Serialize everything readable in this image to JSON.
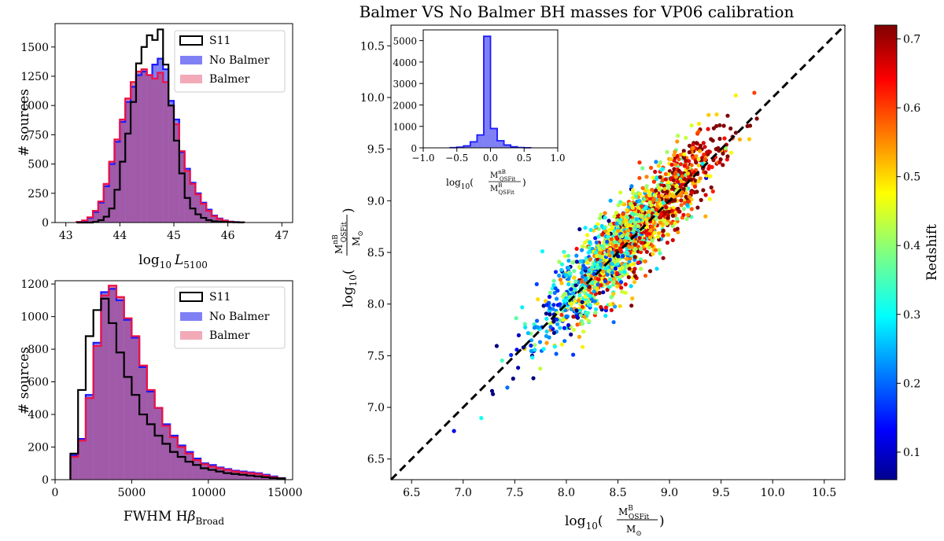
{
  "figure": {
    "colors": {
      "s11": "#000000",
      "no_balmer": "#8080f5",
      "no_balmer_edge": "#1a1aff",
      "balmer_edge": "#ee1144",
      "overlap": "#a05aa8",
      "balmer_legend": "#f2aab8",
      "dashed": "#000000"
    }
  },
  "chart_data": [
    {
      "id": "lum_hist",
      "type": "bar",
      "xlabel_prefix": "log",
      "xlabel_sub": "10",
      "xlabel_var": "L",
      "xlabel_var_sub": "5100",
      "ylabel": "# sources",
      "xlim": [
        42.8,
        47.2
      ],
      "ylim": [
        0,
        1700
      ],
      "xticks": [
        43,
        44,
        45,
        46,
        47
      ],
      "yticks": [
        0,
        250,
        500,
        750,
        1000,
        1250,
        1500
      ],
      "bin_edges": [
        43.2,
        43.3,
        43.4,
        43.5,
        43.6,
        43.7,
        43.8,
        43.9,
        44.0,
        44.1,
        44.2,
        44.3,
        44.4,
        44.5,
        44.6,
        44.7,
        44.8,
        44.9,
        45.0,
        45.1,
        45.2,
        45.3,
        45.4,
        45.5,
        45.6,
        45.7,
        45.8,
        45.9,
        46.0,
        46.1,
        46.2,
        46.3
      ],
      "legend": [
        "S11",
        "No Balmer",
        "Balmer"
      ],
      "series": [
        {
          "name": "S11",
          "values": [
            0,
            0,
            0,
            5,
            20,
            50,
            120,
            280,
            520,
            760,
            1030,
            1360,
            1500,
            1600,
            1560,
            1650,
            1350,
            1000,
            700,
            420,
            210,
            120,
            70,
            40,
            20,
            10,
            8,
            5,
            3,
            2,
            1
          ]
        },
        {
          "name": "No Balmer",
          "values": [
            5,
            15,
            40,
            90,
            170,
            310,
            500,
            690,
            860,
            1030,
            1160,
            1260,
            1290,
            1260,
            1350,
            1400,
            1310,
            1040,
            880,
            600,
            460,
            340,
            250,
            170,
            110,
            60,
            35,
            18,
            8,
            4,
            2
          ]
        },
        {
          "name": "Balmer",
          "values": [
            5,
            18,
            45,
            100,
            180,
            330,
            520,
            710,
            880,
            1060,
            1200,
            1290,
            1310,
            1260,
            1230,
            1280,
            1200,
            1000,
            840,
            610,
            440,
            330,
            240,
            160,
            100,
            55,
            30,
            15,
            7,
            3,
            1
          ]
        }
      ]
    },
    {
      "id": "fwhm_hist",
      "type": "bar",
      "xlabel_prefix": "FWHM H",
      "xlabel_greek": "β",
      "xlabel_sub": "Broad",
      "ylabel": "# sources",
      "xlim": [
        0,
        15500
      ],
      "ylim": [
        0,
        1220
      ],
      "xticks": [
        0,
        5000,
        10000,
        15000
      ],
      "yticks": [
        0,
        200,
        400,
        600,
        800,
        1000,
        1200
      ],
      "bin_edges": [
        1000,
        1500,
        2000,
        2500,
        3000,
        3500,
        4000,
        4500,
        5000,
        5500,
        6000,
        6500,
        7000,
        7500,
        8000,
        8500,
        9000,
        9500,
        10000,
        10500,
        11000,
        11500,
        12000,
        12500,
        13000,
        13500,
        14000,
        14500,
        15000
      ],
      "legend": [
        "S11",
        "No Balmer",
        "Balmer"
      ],
      "series": [
        {
          "name": "S11",
          "values": [
            160,
            550,
            880,
            1040,
            1110,
            960,
            780,
            630,
            520,
            400,
            340,
            270,
            220,
            170,
            140,
            110,
            90,
            70,
            60,
            50,
            40,
            35,
            30,
            25,
            20,
            15,
            10,
            8
          ]
        },
        {
          "name": "No Balmer",
          "values": [
            150,
            250,
            520,
            840,
            1150,
            1170,
            1100,
            980,
            870,
            690,
            540,
            440,
            340,
            270,
            210,
            170,
            130,
            100,
            90,
            75,
            65,
            55,
            50,
            45,
            40,
            30,
            20,
            10
          ]
        },
        {
          "name": "Balmer",
          "values": [
            140,
            240,
            500,
            820,
            1130,
            1190,
            1120,
            990,
            880,
            700,
            550,
            440,
            330,
            260,
            200,
            160,
            120,
            95,
            80,
            70,
            60,
            50,
            45,
            40,
            35,
            25,
            15,
            8
          ]
        }
      ]
    },
    {
      "id": "mass_scatter",
      "type": "scatter",
      "title": "Balmer VS No Balmer BH masses for VP06 calibration",
      "xlabel_main": "M",
      "xlabel_sup": "B",
      "xlabel_sub": "QSFit",
      "xlabel_den": "M",
      "xlabel_den_sub": "⊙",
      "ylabel_main": "M",
      "ylabel_sup": "nB",
      "ylabel_sub": "QSFit",
      "ylabel_den": "M",
      "ylabel_den_sub": "⊙",
      "log_prefix": "log",
      "log_sub": "10",
      "xlim": [
        6.3,
        10.7
      ],
      "ylim": [
        6.3,
        10.7
      ],
      "xticks": [
        6.5,
        7.0,
        7.5,
        8.0,
        8.5,
        9.0,
        9.5,
        10.0,
        10.5
      ],
      "yticks": [
        6.5,
        7.0,
        7.5,
        8.0,
        8.5,
        9.0,
        9.5,
        10.0,
        10.5
      ],
      "one_to_one_line": [
        [
          6.3,
          6.3
        ],
        [
          10.7,
          10.7
        ]
      ],
      "n_points_drawn": 1800,
      "x_center": 8.6,
      "x_spread": 0.42,
      "y_scatter": 0.2,
      "redshift_range": [
        0.06,
        0.72
      ]
    },
    {
      "id": "ratio_inset",
      "type": "bar",
      "xlabel_prefix": "log",
      "xlabel_sub": "10",
      "xlabel_num": "M",
      "xlabel_num_sup": "nB",
      "xlabel_num_sub": "QSFit",
      "xlabel_den": "M",
      "xlabel_den_sup": "B",
      "xlabel_den_sub": "QSFit",
      "xlim": [
        -1.0,
        1.0
      ],
      "ylim": [
        0,
        5500
      ],
      "xticks": [
        -1.0,
        -0.5,
        0.0,
        0.5,
        1.0
      ],
      "yticks": [
        0,
        1000,
        2000,
        3000,
        4000,
        5000
      ],
      "bin_edges": [
        -0.6,
        -0.5,
        -0.4,
        -0.3,
        -0.2,
        -0.1,
        0.0,
        0.1,
        0.2,
        0.3,
        0.4,
        0.5,
        0.6
      ],
      "values": [
        10,
        30,
        90,
        280,
        600,
        5200,
        900,
        330,
        130,
        50,
        15,
        5
      ]
    },
    {
      "id": "colorbar",
      "type": "heatmap",
      "label": "Redshift",
      "range": [
        0.06,
        0.72
      ],
      "ticks": [
        0.1,
        0.2,
        0.3,
        0.4,
        0.5,
        0.6,
        0.7
      ],
      "colormap": "jet"
    }
  ]
}
